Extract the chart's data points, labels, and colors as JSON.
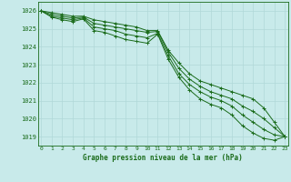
{
  "title": "Graphe pression niveau de la mer (hPa)",
  "background_color": "#c8eaea",
  "grid_color": "#b0d8d8",
  "line_color": "#1a6b1a",
  "ylim": [
    1018.5,
    1026.5
  ],
  "xlim": [
    -0.3,
    23.3
  ],
  "yticks": [
    1019,
    1020,
    1021,
    1022,
    1023,
    1024,
    1025,
    1026
  ],
  "xticks": [
    0,
    1,
    2,
    3,
    4,
    5,
    6,
    7,
    8,
    9,
    10,
    11,
    12,
    13,
    14,
    15,
    16,
    17,
    18,
    19,
    20,
    21,
    22,
    23
  ],
  "series": [
    [
      1026.0,
      1025.9,
      1025.8,
      1025.7,
      1025.7,
      1025.5,
      1025.4,
      1025.3,
      1025.2,
      1025.1,
      1024.9,
      1024.9,
      1023.8,
      1023.1,
      1022.5,
      1022.1,
      1021.9,
      1021.7,
      1021.5,
      1021.3,
      1021.1,
      1020.6,
      1019.8,
      1019.0
    ],
    [
      1026.0,
      1025.8,
      1025.7,
      1025.6,
      1025.65,
      1025.3,
      1025.2,
      1025.1,
      1025.0,
      1024.9,
      1024.8,
      1024.85,
      1023.7,
      1022.8,
      1022.2,
      1021.8,
      1021.5,
      1021.3,
      1021.1,
      1020.7,
      1020.4,
      1020.0,
      1019.5,
      1019.0
    ],
    [
      1026.0,
      1025.7,
      1025.6,
      1025.5,
      1025.6,
      1025.1,
      1025.0,
      1024.9,
      1024.7,
      1024.6,
      1024.5,
      1024.75,
      1023.5,
      1022.5,
      1021.9,
      1021.5,
      1021.2,
      1021.0,
      1020.7,
      1020.2,
      1019.8,
      1019.4,
      1019.1,
      1019.0
    ],
    [
      1026.0,
      1025.65,
      1025.5,
      1025.4,
      1025.55,
      1024.9,
      1024.8,
      1024.6,
      1024.4,
      1024.3,
      1024.2,
      1024.7,
      1023.3,
      1022.3,
      1021.6,
      1021.1,
      1020.8,
      1020.6,
      1020.2,
      1019.6,
      1019.2,
      1018.9,
      1018.8,
      1019.0
    ]
  ]
}
